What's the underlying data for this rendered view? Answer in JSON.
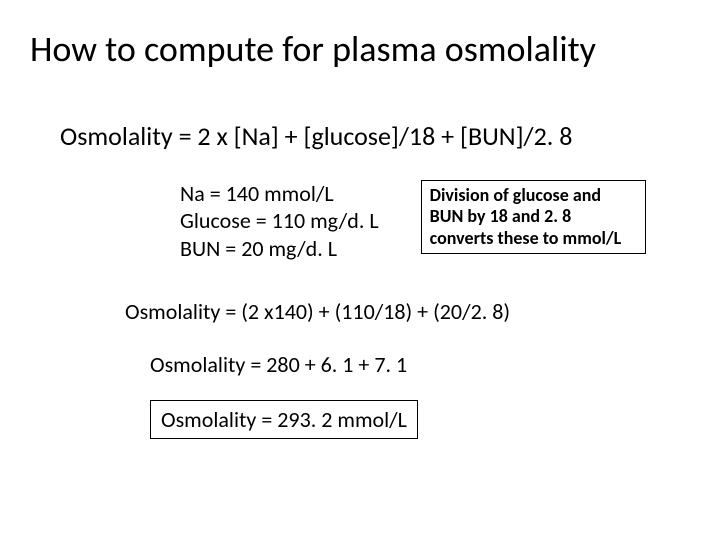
{
  "title": "How to compute for plasma osmolality",
  "formula": "Osmolality =   2 x [Na] + [glucose]/18 + [BUN]/2. 8",
  "values": {
    "na": "Na = 140 mmol/L",
    "glucose": "Glucose = 110 mg/d. L",
    "bun": "BUN = 20 mg/d. L"
  },
  "note": "Division of glucose and BUN by 18 and 2. 8 converts these to mmol/L",
  "step1": "Osmolality = (2 x140) + (110/18) + (20/2. 8)",
  "step2": "Osmolality = 280 + 6. 1 + 7. 1",
  "result": "Osmolality =  293. 2 mmol/L",
  "style": {
    "background_color": "#ffffff",
    "text_color": "#000000",
    "title_fontsize": 36,
    "body_fontsize": 22,
    "note_fontsize": 18,
    "border_color": "#000000",
    "border_width": 1,
    "font_family": "Calibri"
  }
}
